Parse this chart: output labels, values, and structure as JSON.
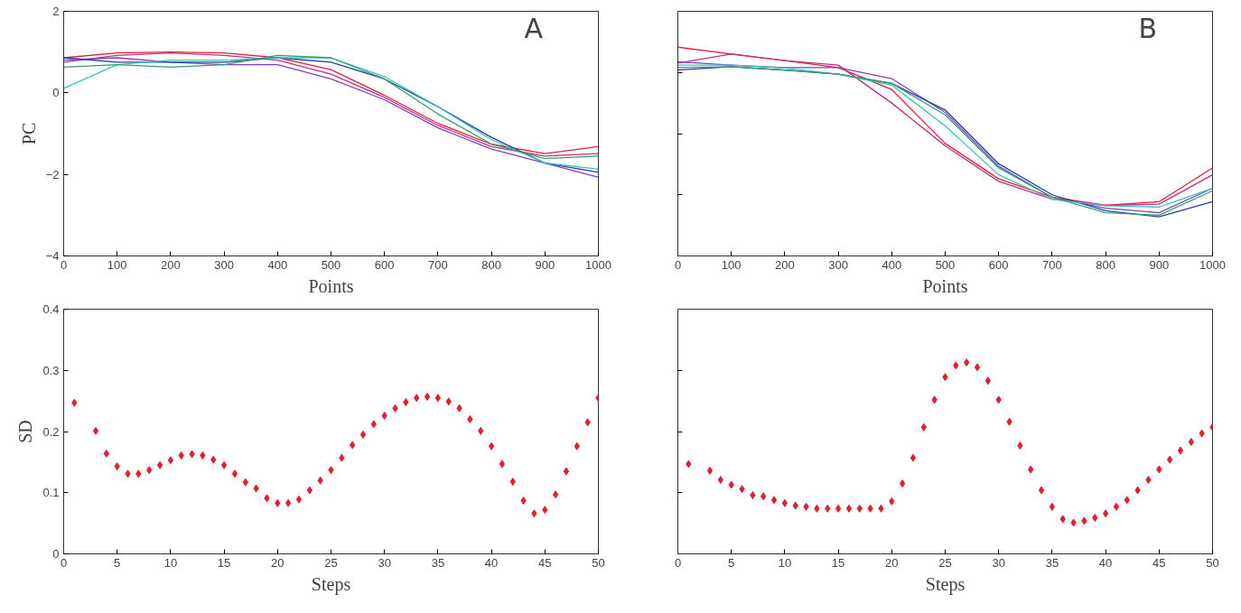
{
  "chart_data": [
    {
      "type": "line",
      "annotations": [
        "A"
      ],
      "xlabel": "Points",
      "ylabel": "PC",
      "x": [
        0,
        100,
        200,
        300,
        400,
        500,
        600,
        700,
        800,
        900,
        1000
      ],
      "xlim": [
        0,
        1000
      ],
      "xticks": [
        0,
        100,
        200,
        300,
        400,
        500,
        600,
        700,
        800,
        900,
        1000
      ],
      "ylim": [
        -4,
        2
      ],
      "yticks": [
        -4,
        -2,
        0,
        2
      ],
      "grid": false,
      "line_style": "solid",
      "series": [
        {
          "color": "#e0203a",
          "values": [
            0.86,
            0.98,
            1.0,
            0.98,
            0.86,
            0.57,
            -0.06,
            -0.75,
            -1.26,
            -1.49,
            -1.32
          ]
        },
        {
          "color": "#c03080",
          "values": [
            0.75,
            0.92,
            0.98,
            0.92,
            0.8,
            0.46,
            -0.11,
            -0.8,
            -1.32,
            -1.55,
            -1.49
          ]
        },
        {
          "color": "#8040c0",
          "values": [
            0.8,
            0.86,
            0.75,
            0.69,
            0.69,
            0.34,
            -0.17,
            -0.86,
            -1.38,
            -1.72,
            -2.07
          ]
        },
        {
          "color": "#2040a0",
          "values": [
            0.86,
            0.75,
            0.75,
            0.75,
            0.86,
            0.75,
            0.34,
            -0.34,
            -1.09,
            -1.72,
            -1.95
          ]
        },
        {
          "color": "#40c0c0",
          "values": [
            0.11,
            0.69,
            0.8,
            0.8,
            0.86,
            0.86,
            0.4,
            -0.34,
            -1.15,
            -1.72,
            -1.87
          ]
        },
        {
          "color": "#30a070",
          "values": [
            0.63,
            0.69,
            0.63,
            0.69,
            0.92,
            0.86,
            0.34,
            -0.52,
            -1.26,
            -1.61,
            -1.55
          ]
        }
      ]
    },
    {
      "type": "line",
      "annotations": [
        "B"
      ],
      "xlabel": "Points",
      "x": [
        0,
        100,
        200,
        300,
        400,
        500,
        600,
        700,
        800,
        900,
        1000
      ],
      "xlim": [
        0,
        1000
      ],
      "xticks": [
        0,
        100,
        200,
        300,
        400,
        500,
        600,
        700,
        800,
        900,
        1000
      ],
      "ylim": [
        -4,
        2
      ],
      "yticks": [
        {
          "value": -2.5,
          "label": null
        },
        {
          "value": -1,
          "label": null
        },
        {
          "value": 0.5,
          "label": null
        }
      ],
      "tick_labels": "x",
      "grid": false,
      "line_style": "solid",
      "series": [
        {
          "color": "#e0203a",
          "values": [
            1.12,
            0.95,
            0.79,
            0.62,
            0.08,
            -1.24,
            -2.11,
            -2.56,
            -2.76,
            -2.67,
            -1.84
          ]
        },
        {
          "color": "#c03080",
          "values": [
            0.73,
            0.95,
            0.79,
            0.68,
            -0.25,
            -1.3,
            -2.17,
            -2.61,
            -2.76,
            -2.73,
            -2.01
          ]
        },
        {
          "color": "#8040c0",
          "values": [
            0.76,
            0.68,
            0.62,
            0.62,
            0.35,
            -0.48,
            -1.8,
            -2.56,
            -2.83,
            -2.94,
            -2.34
          ]
        },
        {
          "color": "#2040a0",
          "values": [
            0.56,
            0.64,
            0.56,
            0.46,
            0.23,
            -0.42,
            -1.74,
            -2.5,
            -2.89,
            -3.04,
            -2.67
          ]
        },
        {
          "color": "#40c0c0",
          "values": [
            0.68,
            0.68,
            0.61,
            0.46,
            0.19,
            -0.81,
            -2.01,
            -2.61,
            -2.77,
            -2.8,
            -2.34
          ]
        },
        {
          "color": "#30a070",
          "values": [
            0.62,
            0.64,
            0.56,
            0.46,
            0.23,
            -0.54,
            -1.84,
            -2.56,
            -2.94,
            -3.0,
            -2.4
          ]
        }
      ]
    },
    {
      "type": "scatter",
      "xlabel": "Steps",
      "ylabel": "SD",
      "x": [
        1,
        3,
        4,
        5,
        6,
        7,
        8,
        9,
        10,
        11,
        12,
        13,
        14,
        15,
        16,
        17,
        18,
        19,
        20,
        21,
        22,
        23,
        24,
        25,
        26,
        27,
        28,
        29,
        30,
        31,
        32,
        33,
        34,
        35,
        36,
        37,
        38,
        39,
        40,
        41,
        42,
        43,
        44,
        45,
        46,
        47,
        48,
        49,
        50
      ],
      "xlim": [
        0,
        50
      ],
      "xticks": [
        0,
        5,
        10,
        15,
        20,
        25,
        30,
        35,
        40,
        45,
        50
      ],
      "ylim": [
        0,
        0.4
      ],
      "yticks": [
        0,
        0.1,
        0.2,
        0.3,
        0.4
      ],
      "grid": false,
      "marker": "diamond",
      "series": [
        {
          "color": "#e02030",
          "values": [
            0.247,
            0.201,
            0.164,
            0.143,
            0.131,
            0.131,
            0.137,
            0.145,
            0.153,
            0.161,
            0.163,
            0.161,
            0.154,
            0.145,
            0.131,
            0.117,
            0.107,
            0.091,
            0.083,
            0.083,
            0.089,
            0.104,
            0.12,
            0.137,
            0.157,
            0.178,
            0.195,
            0.212,
            0.226,
            0.238,
            0.248,
            0.255,
            0.257,
            0.255,
            0.249,
            0.238,
            0.22,
            0.201,
            0.176,
            0.147,
            0.118,
            0.087,
            0.066,
            0.072,
            0.097,
            0.135,
            0.176,
            0.215,
            0.255
          ]
        }
      ]
    },
    {
      "type": "scatter",
      "xlabel": "Steps",
      "x": [
        1,
        3,
        4,
        5,
        6,
        7,
        8,
        9,
        10,
        11,
        12,
        13,
        14,
        15,
        16,
        17,
        18,
        19,
        20,
        21,
        22,
        23,
        24,
        25,
        26,
        27,
        28,
        29,
        30,
        31,
        32,
        33,
        34,
        35,
        36,
        37,
        38,
        39,
        40,
        41,
        42,
        43,
        44,
        45,
        46,
        47,
        48,
        49,
        50
      ],
      "xlim": [
        0,
        50
      ],
      "xticks": [
        0,
        5,
        10,
        15,
        20,
        25,
        30,
        35,
        40,
        45,
        50
      ],
      "ylim": [
        0,
        0.4
      ],
      "yticks": [
        0.1,
        0.2,
        0.3
      ],
      "tick_labels": "x",
      "grid": false,
      "marker": "diamond",
      "series": [
        {
          "color": "#e02030",
          "values": [
            0.147,
            0.136,
            0.121,
            0.113,
            0.106,
            0.096,
            0.094,
            0.088,
            0.083,
            0.079,
            0.077,
            0.074,
            0.074,
            0.074,
            0.074,
            0.074,
            0.074,
            0.074,
            0.086,
            0.115,
            0.157,
            0.207,
            0.252,
            0.289,
            0.308,
            0.313,
            0.305,
            0.283,
            0.252,
            0.216,
            0.177,
            0.138,
            0.104,
            0.077,
            0.057,
            0.051,
            0.054,
            0.059,
            0.066,
            0.077,
            0.088,
            0.104,
            0.121,
            0.138,
            0.154,
            0.169,
            0.183,
            0.197,
            0.207
          ]
        }
      ]
    }
  ]
}
